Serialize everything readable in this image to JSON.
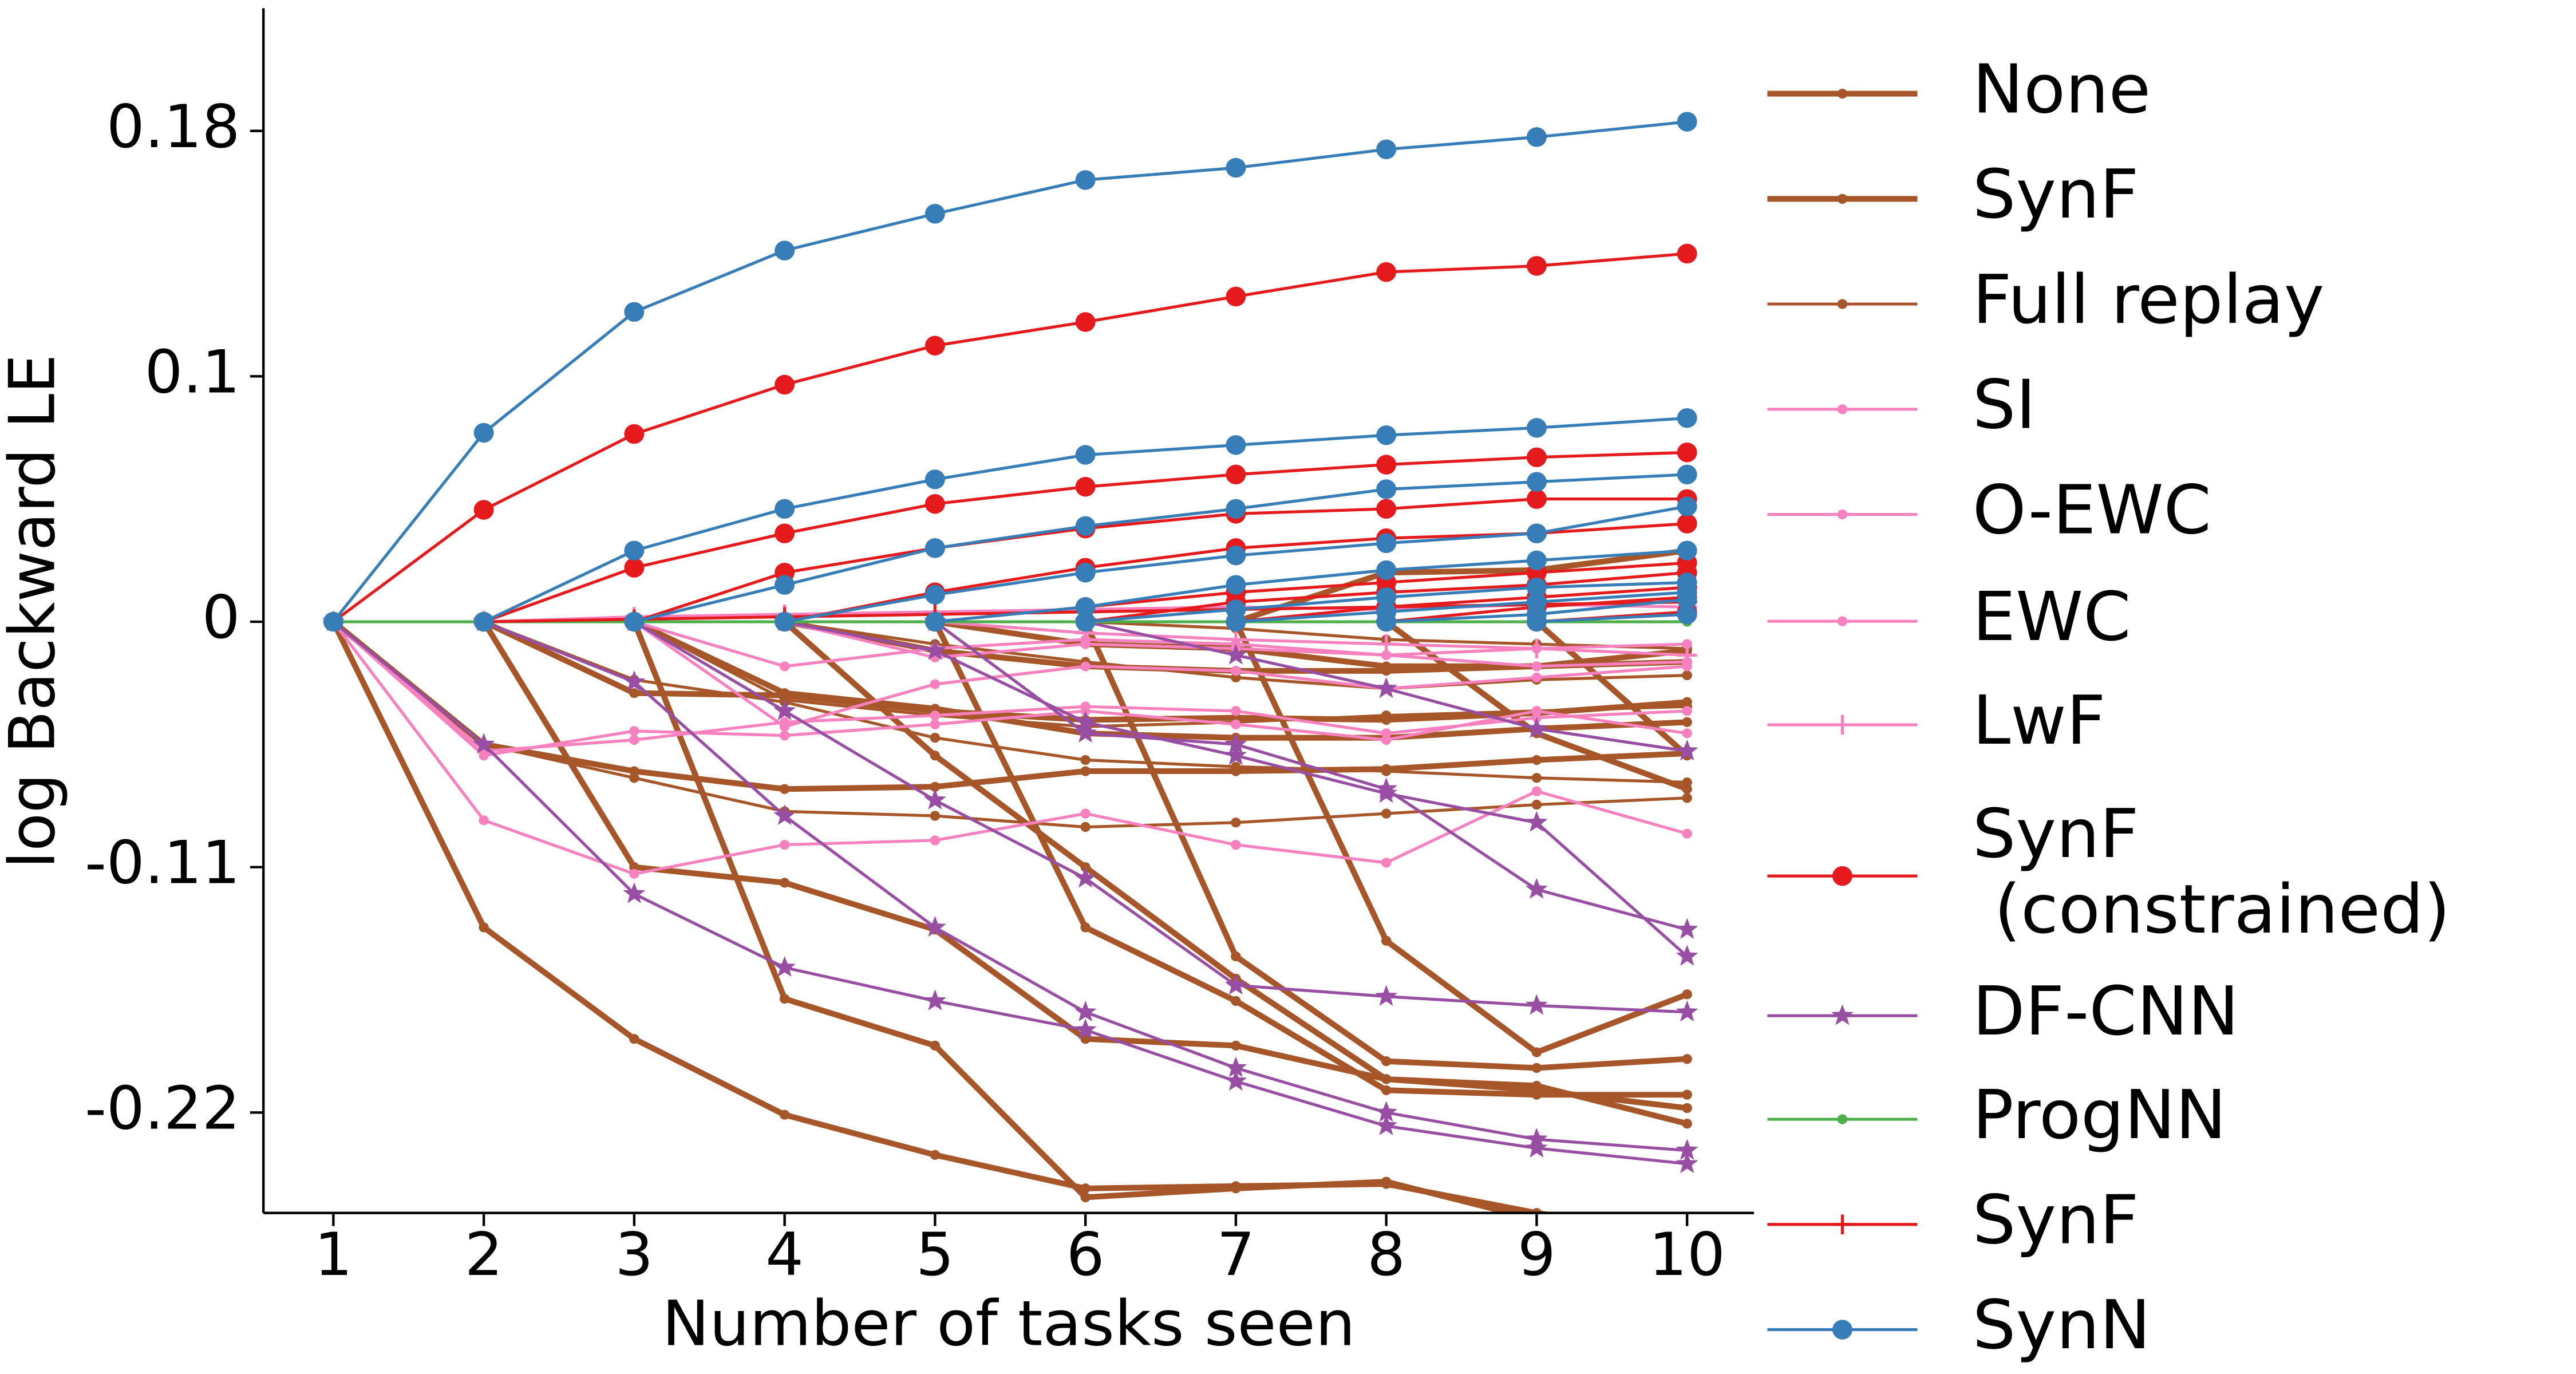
{
  "chart_data": {
    "type": "line",
    "xlabel": "Number of tasks seen",
    "ylabel": "log Backward LE",
    "x": [
      1,
      2,
      3,
      4,
      5,
      6,
      7,
      8,
      9,
      10
    ],
    "xlim": [
      0.535,
      10.445
    ],
    "xticks": [
      1,
      2,
      3,
      4,
      5,
      6,
      7,
      8,
      9,
      10
    ],
    "ylim": [
      -0.265,
      0.22
    ],
    "yticks": [
      -0.22,
      -0.11,
      0.0,
      0.1,
      0.18
    ],
    "legend": "right",
    "series": [
      {
        "name": "None",
        "color": "#a65628",
        "thick": true,
        "marker": "dot",
        "lines": [
          [
            0,
            -0.137,
            -0.187,
            -0.221,
            -0.239,
            -0.254,
            -0.253,
            -0.252,
            -0.265,
            -0.275
          ],
          [
            null,
            0,
            -0.11,
            -0.117,
            -0.138,
            -0.187,
            -0.19,
            -0.205,
            -0.208,
            -0.225
          ],
          [
            null,
            null,
            0,
            -0.169,
            -0.19,
            -0.258,
            -0.254,
            -0.251,
            -0.268,
            -0.28
          ],
          [
            null,
            null,
            null,
            0,
            -0.06,
            -0.11,
            -0.16,
            -0.205,
            -0.21,
            -0.218
          ],
          [
            null,
            null,
            null,
            null,
            0,
            -0.137,
            -0.17,
            -0.21,
            -0.212,
            -0.212
          ],
          [
            null,
            null,
            null,
            null,
            null,
            0,
            -0.15,
            -0.197,
            -0.2,
            -0.196
          ],
          [
            null,
            null,
            null,
            null,
            null,
            null,
            0,
            -0.143,
            -0.193,
            -0.167
          ],
          [
            null,
            null,
            null,
            null,
            null,
            null,
            null,
            0,
            -0.05,
            -0.075
          ],
          [
            null,
            null,
            null,
            null,
            null,
            null,
            null,
            null,
            0,
            -0.06
          ]
        ]
      },
      {
        "name": "SynF",
        "color": "#a65628",
        "thick": true,
        "marker": "dot",
        "lines": [
          [
            0,
            -0.055,
            -0.067,
            -0.075,
            -0.074,
            -0.067,
            -0.067,
            -0.066,
            -0.062,
            -0.059
          ],
          [
            null,
            0,
            -0.032,
            -0.033,
            -0.04,
            -0.044,
            -0.043,
            -0.044,
            -0.041,
            -0.036
          ],
          [
            null,
            null,
            0,
            -0.032,
            -0.039,
            -0.05,
            -0.052,
            -0.052,
            -0.048,
            -0.045
          ],
          [
            null,
            null,
            null,
            0,
            -0.013,
            -0.02,
            -0.022,
            -0.022,
            -0.02,
            -0.013
          ],
          [
            null,
            null,
            null,
            null,
            0,
            -0.01,
            -0.012,
            -0.02,
            -0.02,
            -0.018
          ],
          [
            null,
            null,
            null,
            null,
            null,
            null,
            0,
            0.02,
            0.021,
            0.029
          ]
        ]
      },
      {
        "name": "Full replay",
        "color": "#a65628",
        "thick": false,
        "marker": "dot",
        "lines": [
          [
            0,
            -0.055,
            -0.07,
            -0.085,
            -0.087,
            -0.092,
            -0.09,
            -0.086,
            -0.082,
            -0.079
          ],
          [
            null,
            0,
            -0.026,
            -0.036,
            -0.052,
            -0.062,
            -0.065,
            -0.067,
            -0.07,
            -0.072
          ],
          [
            null,
            null,
            0,
            -0.035,
            -0.042,
            -0.047,
            -0.045,
            -0.042,
            -0.04,
            -0.038
          ],
          [
            null,
            null,
            null,
            0,
            -0.01,
            -0.018,
            -0.025,
            -0.03,
            -0.026,
            -0.024
          ],
          [
            null,
            null,
            null,
            null,
            null,
            0,
            -0.003,
            -0.008,
            -0.01,
            -0.012
          ]
        ]
      },
      {
        "name": "SI",
        "color": "#f781bf",
        "thick": false,
        "marker": "dot",
        "lines": [
          [
            0,
            -0.089,
            -0.113,
            -0.1,
            -0.098,
            -0.086,
            -0.1,
            -0.108,
            -0.076,
            -0.095
          ],
          [
            null,
            null,
            0,
            -0.02,
            -0.012,
            -0.008,
            -0.01,
            -0.015,
            -0.012,
            -0.01
          ]
        ]
      },
      {
        "name": "O-EWC",
        "color": "#f781bf",
        "thick": false,
        "marker": "dot",
        "lines": [
          [
            0,
            -0.06,
            -0.049,
            -0.051,
            -0.046,
            -0.04,
            -0.046,
            -0.053,
            -0.04,
            -0.05
          ],
          [
            null,
            null,
            0,
            -0.047,
            -0.028,
            -0.02,
            -0.022,
            -0.03,
            -0.025,
            -0.02
          ]
        ]
      },
      {
        "name": "EWC",
        "color": "#f781bf",
        "thick": false,
        "marker": "dot",
        "lines": [
          [
            0,
            -0.058,
            -0.053,
            -0.045,
            -0.042,
            -0.038,
            -0.04,
            -0.05,
            -0.043,
            -0.04
          ],
          [
            null,
            null,
            null,
            0,
            -0.016,
            -0.01,
            -0.012,
            -0.015,
            -0.02,
            -0.018
          ]
        ]
      },
      {
        "name": "LwF",
        "color": "#f781bf",
        "thick": false,
        "marker": "plus",
        "lines": [
          [
            null,
            0,
            0.002,
            0.003,
            0.004,
            0.005,
            0.006,
            0.005,
            0.007,
            0.006
          ],
          [
            null,
            null,
            null,
            null,
            0,
            -0.005,
            -0.008,
            -0.01,
            -0.012,
            -0.015
          ]
        ]
      },
      {
        "name": "SynF\n (constrained)",
        "color": "#e41a1c",
        "thick": false,
        "marker": "bigdot",
        "lines": [
          [
            0,
            0.0456,
            0.0765,
            0.0966,
            0.11,
            0.1177,
            0.126,
            0.134,
            0.136,
            0.14
          ],
          [
            null,
            0,
            0.022,
            0.036,
            0.048,
            0.055,
            0.06,
            0.064,
            0.067,
            0.069
          ],
          [
            null,
            null,
            0,
            0.02,
            0.03,
            0.038,
            0.044,
            0.046,
            0.05,
            0.05
          ],
          [
            null,
            null,
            null,
            0,
            0.012,
            0.022,
            0.03,
            0.034,
            0.036,
            0.04
          ],
          [
            null,
            null,
            null,
            null,
            0,
            0.006,
            0.012,
            0.016,
            0.02,
            0.024
          ],
          [
            null,
            null,
            null,
            null,
            null,
            0,
            0.008,
            0.012,
            0.015,
            0.02
          ],
          [
            null,
            null,
            null,
            null,
            null,
            null,
            0,
            0.006,
            0.01,
            0.014
          ],
          [
            null,
            null,
            null,
            null,
            null,
            null,
            null,
            0,
            0.006,
            0.01
          ],
          [
            null,
            null,
            null,
            null,
            null,
            null,
            null,
            null,
            0,
            0.004
          ]
        ]
      },
      {
        "name": "DF-CNN",
        "color": "#984ea3",
        "thick": false,
        "marker": "star",
        "lines": [
          [
            0,
            -0.055,
            -0.122,
            -0.155,
            -0.17,
            -0.183,
            -0.206,
            -0.226,
            -0.236,
            -0.243
          ],
          [
            null,
            0,
            -0.027,
            -0.087,
            -0.137,
            -0.175,
            -0.2,
            -0.22,
            -0.232,
            -0.237
          ],
          [
            null,
            null,
            0,
            -0.04,
            -0.08,
            -0.115,
            -0.163,
            -0.168,
            -0.172,
            -0.175
          ],
          [
            null,
            null,
            null,
            0,
            -0.013,
            -0.045,
            -0.06,
            -0.077,
            -0.09,
            -0.15
          ],
          [
            null,
            null,
            null,
            null,
            0,
            -0.05,
            -0.055,
            -0.075,
            -0.12,
            -0.138
          ],
          [
            null,
            null,
            null,
            null,
            null,
            0,
            -0.015,
            -0.03,
            -0.048,
            -0.058
          ]
        ]
      },
      {
        "name": "ProgNN",
        "color": "#4daf4a",
        "thick": false,
        "marker": "dot",
        "lines": [
          [
            0,
            0,
            0,
            0,
            0,
            0,
            0,
            0,
            0,
            0
          ]
        ]
      },
      {
        "name": "SynF",
        "color": "#e41a1c",
        "thick": false,
        "marker": "plus",
        "lines": [
          [
            null,
            0,
            0.001,
            0.002,
            0.003,
            0.004,
            0.005,
            0.006,
            0.007,
            0.008
          ]
        ]
      },
      {
        "name": "SynN",
        "color": "#377eb8",
        "thick": false,
        "marker": "bigdot",
        "lines": [
          [
            0,
            0.077,
            0.121,
            0.141,
            0.153,
            0.164,
            0.168,
            0.174,
            0.178,
            0.183
          ],
          [
            null,
            0,
            0.029,
            0.046,
            0.058,
            0.068,
            0.072,
            0.076,
            0.079,
            0.083
          ],
          [
            null,
            null,
            0,
            0.015,
            0.03,
            0.039,
            0.046,
            0.054,
            0.057,
            0.06
          ],
          [
            null,
            null,
            null,
            0,
            0.011,
            0.02,
            0.027,
            0.032,
            0.036,
            0.047
          ],
          [
            null,
            null,
            null,
            null,
            0,
            0.006,
            0.015,
            0.021,
            0.025,
            0.029
          ],
          [
            null,
            null,
            null,
            null,
            null,
            0,
            0.005,
            0.01,
            0.014,
            0.016
          ],
          [
            null,
            null,
            null,
            null,
            null,
            null,
            0,
            0.004,
            0.008,
            0.012
          ],
          [
            null,
            null,
            null,
            null,
            null,
            null,
            null,
            0,
            0.003,
            0.009
          ],
          [
            null,
            null,
            null,
            null,
            null,
            null,
            null,
            null,
            0,
            0.003
          ]
        ]
      }
    ]
  }
}
